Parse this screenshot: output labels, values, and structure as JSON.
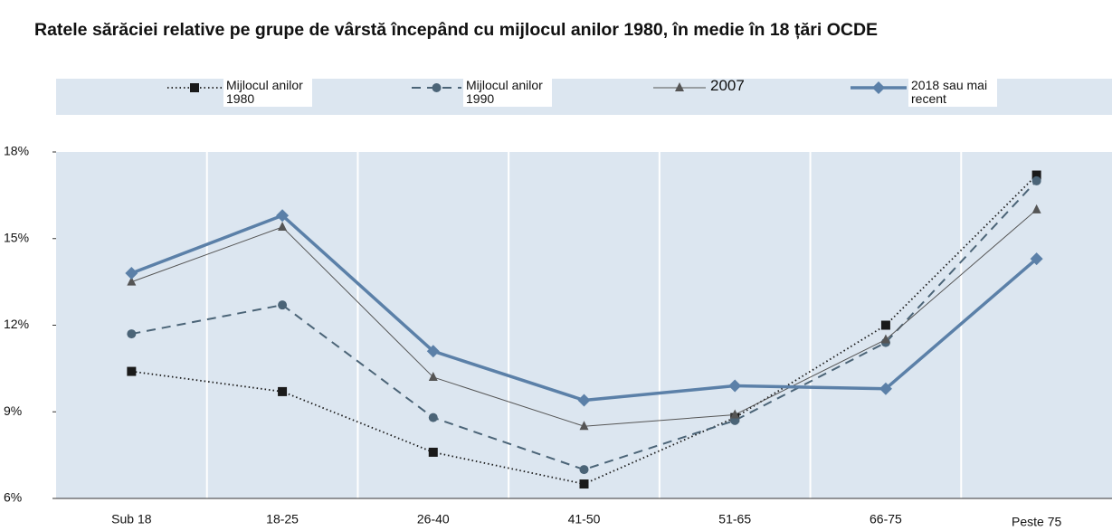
{
  "chart_data": {
    "type": "line",
    "title": "Ratele sărăciei relative pe grupe de vârstă începând cu mijlocul anilor 1980, în medie în 18 țări OCDE",
    "categories": [
      "Sub 18",
      "18-25",
      "26-40",
      "41-50",
      "51-65",
      "66-75",
      "Peste 75"
    ],
    "series": [
      {
        "name": "Mijlocul anilor 1980",
        "color": "#1a1a1a",
        "values": [
          10.4,
          9.7,
          7.6,
          6.5,
          8.8,
          12.0,
          17.2
        ]
      },
      {
        "name": "Mijlocul anilor 1990",
        "color": "#4b6477",
        "values": [
          11.7,
          12.7,
          8.8,
          7.0,
          8.7,
          11.4,
          17.0
        ]
      },
      {
        "name": "2007",
        "color": "#555555",
        "values": [
          13.5,
          15.4,
          10.2,
          8.5,
          8.9,
          11.5,
          16.0
        ]
      },
      {
        "name": "2018 sau mai recent",
        "color": "#5b80a8",
        "values": [
          13.8,
          15.8,
          11.1,
          9.4,
          9.9,
          9.8,
          14.3
        ]
      }
    ],
    "ylim": [
      6,
      18
    ],
    "yticks": [
      {
        "value": 6,
        "label": "6%"
      },
      {
        "value": 9,
        "label": "9%"
      },
      {
        "value": 12,
        "label": "12%"
      },
      {
        "value": 15,
        "label": "15%"
      },
      {
        "value": 18,
        "label": "18%"
      }
    ]
  }
}
